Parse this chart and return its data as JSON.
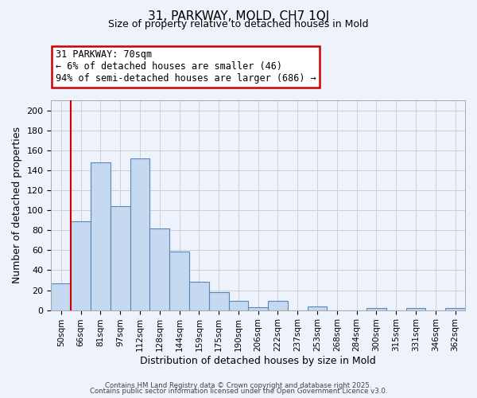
{
  "title1": "31, PARKWAY, MOLD, CH7 1QJ",
  "title2": "Size of property relative to detached houses in Mold",
  "xlabel": "Distribution of detached houses by size in Mold",
  "ylabel": "Number of detached properties",
  "bar_labels": [
    "50sqm",
    "66sqm",
    "81sqm",
    "97sqm",
    "112sqm",
    "128sqm",
    "144sqm",
    "159sqm",
    "175sqm",
    "190sqm",
    "206sqm",
    "222sqm",
    "237sqm",
    "253sqm",
    "268sqm",
    "284sqm",
    "300sqm",
    "315sqm",
    "331sqm",
    "346sqm",
    "362sqm"
  ],
  "bar_values": [
    27,
    89,
    148,
    104,
    152,
    82,
    59,
    28,
    18,
    9,
    3,
    9,
    0,
    4,
    0,
    0,
    2,
    0,
    2,
    0,
    2
  ],
  "bar_color": "#c5d9f0",
  "bar_edge_color": "#5a87b8",
  "ylim": [
    0,
    210
  ],
  "yticks": [
    0,
    20,
    40,
    60,
    80,
    100,
    120,
    140,
    160,
    180,
    200
  ],
  "vline_color": "#cc0000",
  "annotation_title": "31 PARKWAY: 70sqm",
  "annotation_line1": "← 6% of detached houses are smaller (46)",
  "annotation_line2": "94% of semi-detached houses are larger (686) →",
  "annotation_box_color": "#ffffff",
  "annotation_box_edge": "#cc0000",
  "footer1": "Contains HM Land Registry data © Crown copyright and database right 2025.",
  "footer2": "Contains public sector information licensed under the Open Government Licence v3.0.",
  "bg_color": "#eef2fb",
  "grid_color": "#c8cfe0"
}
